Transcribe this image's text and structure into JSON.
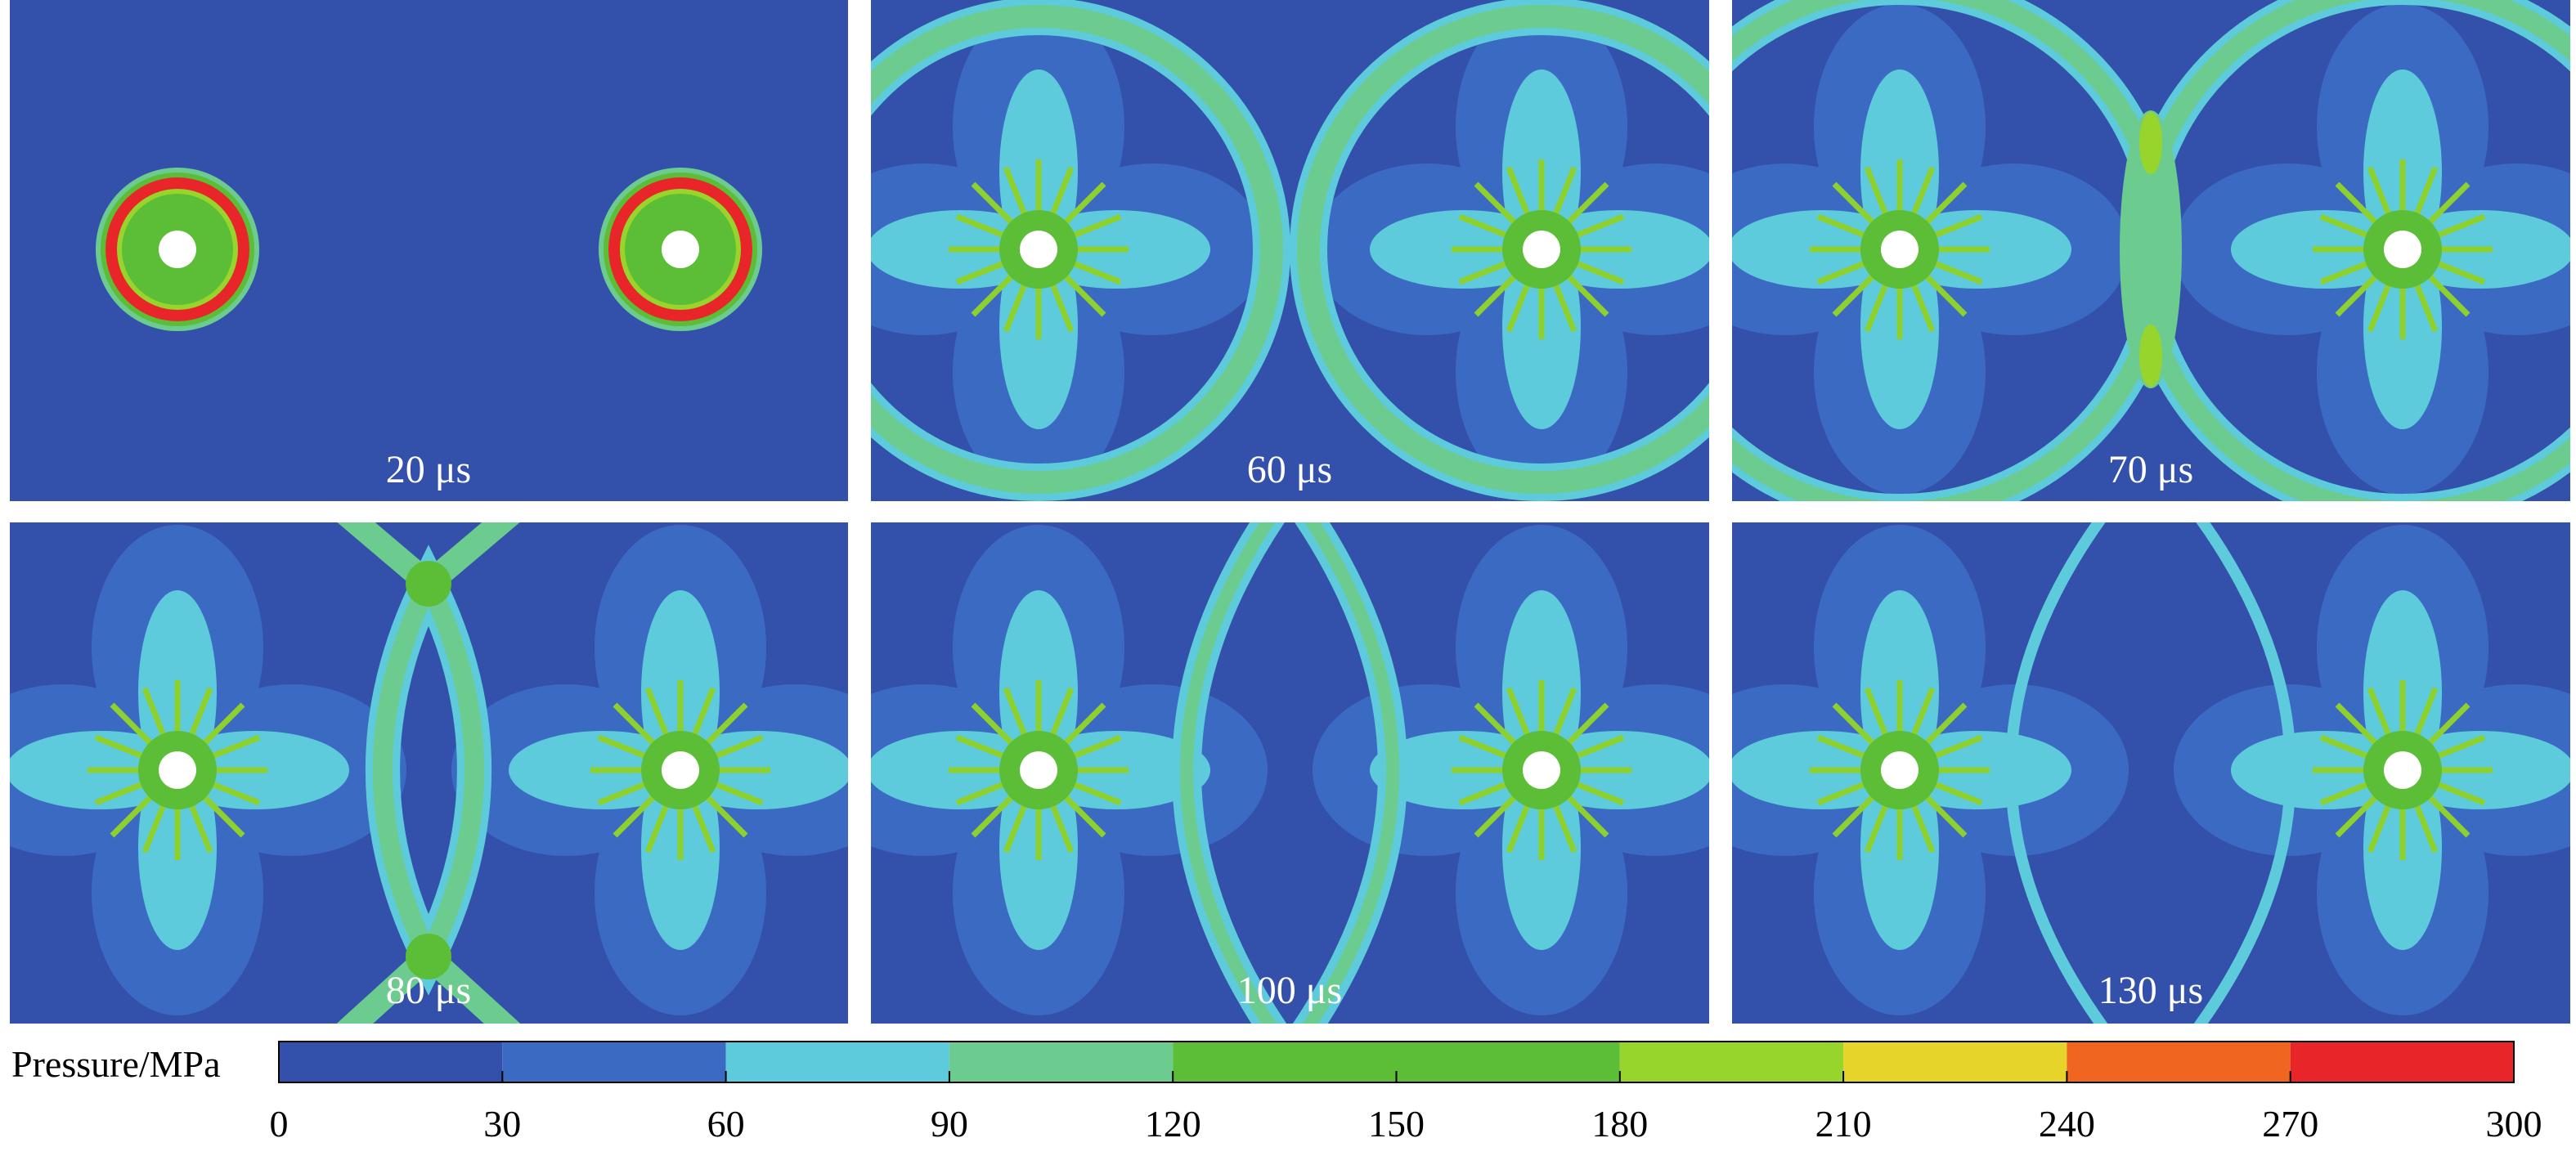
{
  "panels": [
    {
      "label": "20 μs"
    },
    {
      "label": "60 μs"
    },
    {
      "label": "70 μs"
    },
    {
      "label": "80 μs"
    },
    {
      "label": "100 μs"
    },
    {
      "label": "130 μs"
    }
  ],
  "colorbar": {
    "label": "Pressure/MPa",
    "ticks": [
      0,
      30,
      60,
      90,
      120,
      150,
      180,
      210,
      240,
      270,
      300
    ],
    "colors": [
      "#3350ab",
      "#3b6ac3",
      "#5ecbdc",
      "#6ccb8e",
      "#5cbd36",
      "#5cbd36",
      "#98d52c",
      "#e7d42a",
      "#f0651f",
      "#e8262a"
    ]
  }
}
